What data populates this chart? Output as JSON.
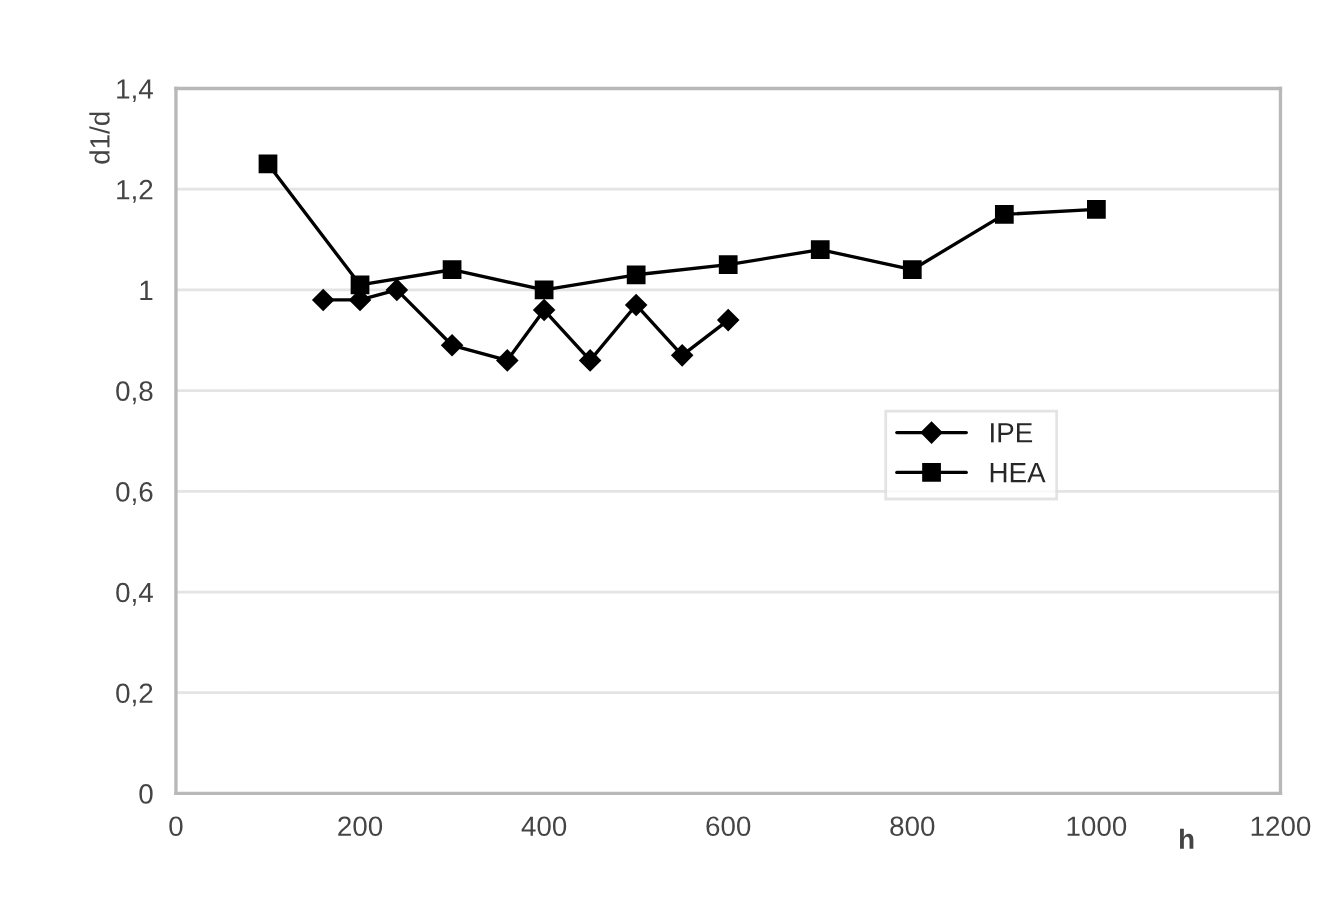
{
  "chart_data": {
    "type": "line",
    "xlabel": "h",
    "ylabel": "d1/d",
    "series": [
      {
        "name": "IPE",
        "color": "#000000",
        "marker": "diamond",
        "x": [
          160,
          200,
          240,
          300,
          360,
          400,
          450,
          500,
          550,
          600
        ],
        "values": [
          0.98,
          0.98,
          1.0,
          0.89,
          0.86,
          0.96,
          0.86,
          0.97,
          0.87,
          0.94
        ]
      },
      {
        "name": "HEA",
        "color": "#000000",
        "marker": "square",
        "x": [
          100,
          200,
          300,
          400,
          500,
          600,
          700,
          800,
          900,
          1000
        ],
        "values": [
          1.25,
          1.01,
          1.04,
          1.0,
          1.03,
          1.05,
          1.08,
          1.04,
          1.15,
          1.16
        ]
      }
    ],
    "xlim": [
      0,
      1200
    ],
    "xticks": [
      0,
      200,
      400,
      600,
      800,
      1000,
      1200
    ],
    "ylim": [
      0,
      1.4
    ],
    "yticks": [
      0,
      {
        "value": 0.2,
        "label": "0,2"
      },
      {
        "value": 0.4,
        "label": "0,4"
      },
      {
        "value": 0.6,
        "label": "0,6"
      },
      {
        "value": 0.8,
        "label": "0,8"
      },
      1,
      {
        "value": 1.2,
        "label": "1,2"
      },
      {
        "value": 1.4,
        "label": "1,4"
      }
    ],
    "grid": "y",
    "legend": "right",
    "line_style": "solid"
  }
}
